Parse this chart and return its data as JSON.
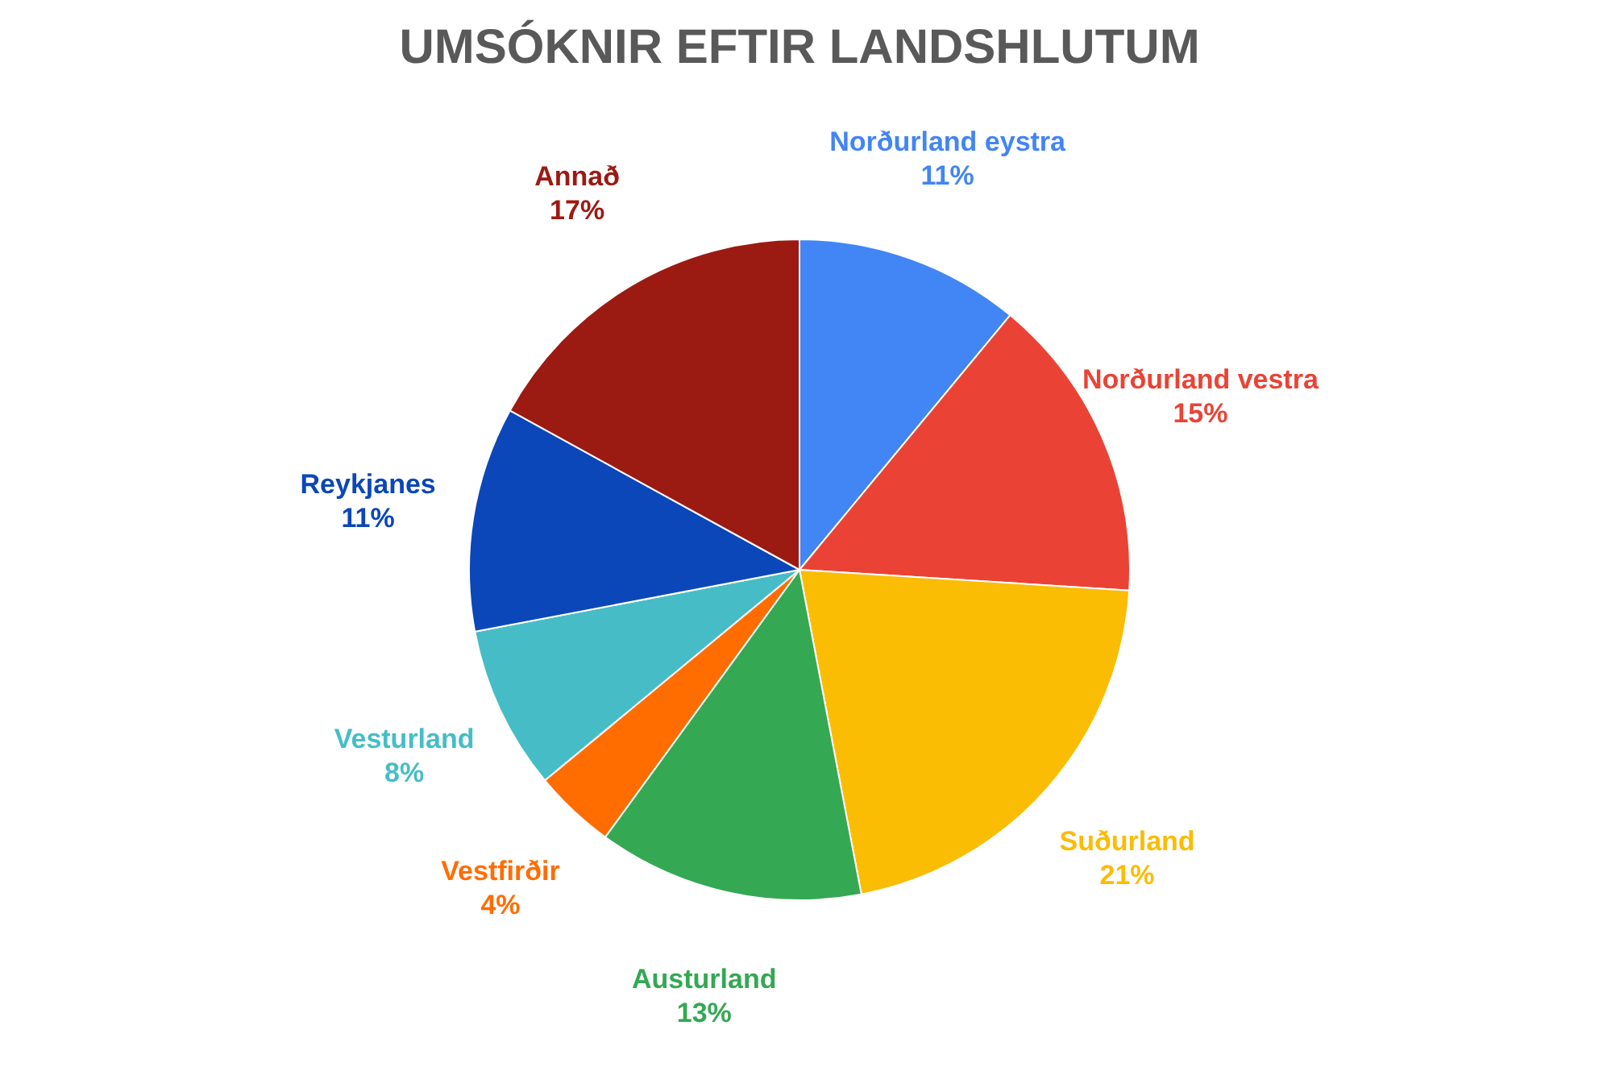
{
  "chart_data": {
    "type": "pie",
    "title": "UMSÓKNIR EFTIR LANDSHLUTUM",
    "categories": [
      "Norðurland eystra",
      "Norðurland vestra",
      "Suðurland",
      "Austurland",
      "Vestfirðir",
      "Vesturland",
      "Reykjanes",
      "Annað"
    ],
    "values": [
      11,
      15,
      21,
      13,
      4,
      8,
      11,
      17
    ],
    "value_labels": [
      "11%",
      "15%",
      "21%",
      "13%",
      "4%",
      "8%",
      "11%",
      "17%"
    ],
    "colors": [
      "#4285f4",
      "#ea4335",
      "#fbbc04",
      "#34a853",
      "#ff6d01",
      "#46bdc6",
      "#0b47b8",
      "#9b1a12"
    ],
    "legend": false
  }
}
